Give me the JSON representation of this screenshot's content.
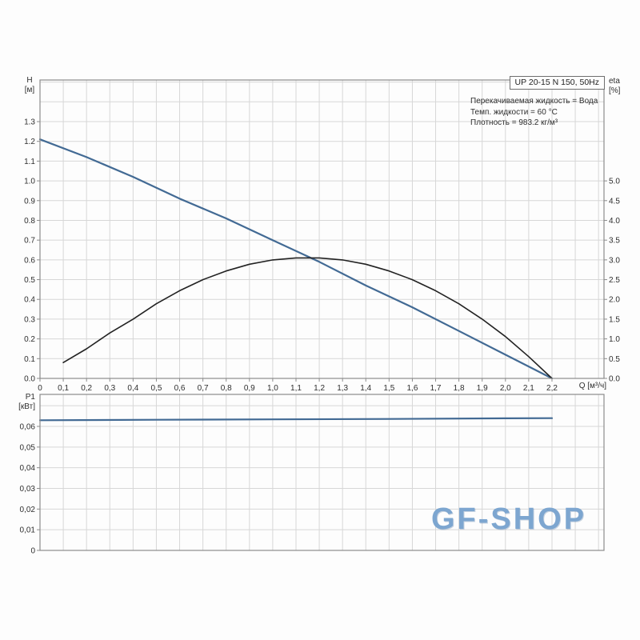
{
  "page": {
    "background": "#fdfdfd"
  },
  "colors": {
    "curve_blue": "#426a94",
    "curve_black": "#222222",
    "grid": "#d7d7d7",
    "axis": "#8c8c8c",
    "text": "#2e2e2e",
    "watermark": "#7da6d0"
  },
  "watermark": {
    "text": "GF-SHOP"
  },
  "chart_data": [
    {
      "type": "line",
      "title": "UP 20-15 N 150, 50Hz",
      "annotations": [
        "Перекачиваемая жидкость = Вода",
        "Темп. жидкости = 60 °C",
        "Плотность = 983.2 кг/м³"
      ],
      "xlabel": "Q [м³/ч]",
      "ylabel_left_lines": [
        "H",
        "[м]"
      ],
      "ylabel_right_lines": [
        "eta",
        "[%]"
      ],
      "grid": true,
      "x_axis": {
        "min": 0,
        "max": 2.2,
        "step": 0.1,
        "tick_labels": [
          "0",
          "0,1",
          "0,2",
          "0,3",
          "0,4",
          "0,5",
          "0,6",
          "0,7",
          "0,8",
          "0,9",
          "1,0",
          "1,1",
          "1,2",
          "1,3",
          "1,4",
          "1,5",
          "1,6",
          "1,7",
          "1,8",
          "1,9",
          "2,0",
          "2,1",
          "2,2"
        ]
      },
      "y_left": {
        "min": 0,
        "max": 1.3,
        "step": 0.1,
        "tick_labels": [
          "0.0",
          "0.1",
          "0.2",
          "0.3",
          "0.4",
          "0.5",
          "0.6",
          "0.7",
          "0.8",
          "0.9",
          "1.0",
          "1.1",
          "1.2",
          "1.3"
        ]
      },
      "y_right": {
        "min": 0,
        "max": 5.0,
        "step": 0.5,
        "tick_labels": [
          "0.0",
          "0.5",
          "1.0",
          "1.5",
          "2.0",
          "2.5",
          "3.0",
          "3.5",
          "4.0",
          "4.5",
          "5.0"
        ]
      },
      "series": [
        {
          "name": "H",
          "axis": "left",
          "color_key": "curve_blue",
          "x": [
            0,
            0.2,
            0.4,
            0.6,
            0.8,
            1.0,
            1.2,
            1.4,
            1.6,
            1.8,
            2.0,
            2.2
          ],
          "y": [
            1.21,
            1.12,
            1.02,
            0.91,
            0.81,
            0.7,
            0.59,
            0.47,
            0.36,
            0.24,
            0.12,
            0.0
          ]
        },
        {
          "name": "eta",
          "axis": "right",
          "color_key": "curve_black",
          "x": [
            0.1,
            0.2,
            0.3,
            0.4,
            0.5,
            0.6,
            0.7,
            0.8,
            0.9,
            1.0,
            1.1,
            1.2,
            1.3,
            1.4,
            1.5,
            1.6,
            1.7,
            1.8,
            1.9,
            2.0,
            2.1,
            2.2
          ],
          "y": [
            0.4,
            0.75,
            1.15,
            1.5,
            1.89,
            2.22,
            2.5,
            2.72,
            2.89,
            3.0,
            3.05,
            3.05,
            3.0,
            2.89,
            2.72,
            2.5,
            2.22,
            1.89,
            1.5,
            1.06,
            0.55,
            0.0
          ]
        }
      ]
    },
    {
      "type": "line",
      "title": "",
      "xlabel": "",
      "ylabel_left_lines": [
        "P1",
        "[кВт]"
      ],
      "grid": true,
      "x_axis": {
        "min": 0,
        "max": 2.2,
        "step": 0.1,
        "tick_labels": []
      },
      "y_left": {
        "min": 0,
        "max": 0.06,
        "step": 0.01,
        "tick_labels": [
          "0",
          "0,01",
          "0,02",
          "0,03",
          "0,04",
          "0,05",
          "0,06"
        ]
      },
      "series": [
        {
          "name": "P1",
          "axis": "left",
          "color_key": "curve_blue",
          "x": [
            0,
            0.5,
            1.0,
            1.5,
            2.0,
            2.2
          ],
          "y": [
            0.063,
            0.0632,
            0.0634,
            0.0636,
            0.0639,
            0.064
          ]
        }
      ]
    }
  ]
}
